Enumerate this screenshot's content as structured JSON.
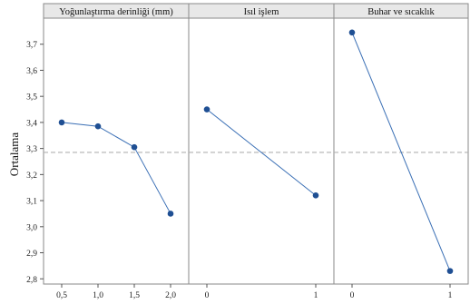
{
  "chart_data": {
    "type": "line",
    "ylabel": "Ortalama",
    "ylim": [
      2.78,
      3.8
    ],
    "yticks": [
      "3,7",
      "3,6",
      "3,5",
      "3,4",
      "3,3",
      "3,2",
      "3,1",
      "3,0",
      "2,9",
      "2,8"
    ],
    "ytick_values": [
      3.7,
      3.6,
      3.5,
      3.4,
      3.3,
      3.2,
      3.1,
      3.0,
      2.9,
      2.8
    ],
    "reference_line": 3.285,
    "grid": false,
    "colors": {
      "series": "#3a6fb5",
      "marker": "#1f4f93",
      "reference": "#b0b0b0",
      "frame": "#8a8a8a",
      "header": "#e8e8e8"
    },
    "panels": [
      {
        "title": "Yoğunlaştırma derinliği (mm)",
        "categories": [
          "0,5",
          "1,0",
          "1,5",
          "2,0"
        ],
        "values": [
          3.4,
          3.385,
          3.305,
          3.05
        ]
      },
      {
        "title": "Isıl işlem",
        "categories": [
          "0",
          "1"
        ],
        "values": [
          3.45,
          3.12
        ]
      },
      {
        "title": "Buhar ve sıcaklık",
        "categories": [
          "0",
          "1"
        ],
        "values": [
          3.745,
          2.83
        ]
      }
    ]
  }
}
